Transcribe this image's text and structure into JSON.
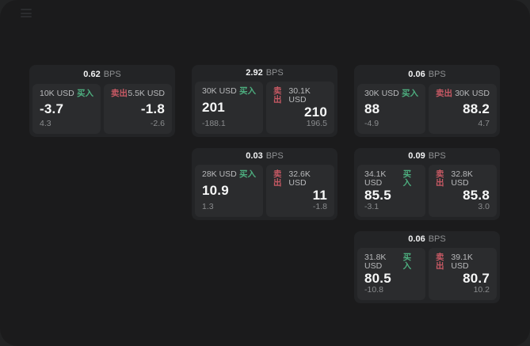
{
  "labels": {
    "bps_unit": "BPS",
    "buy": "买入",
    "sell": "卖出"
  },
  "colors": {
    "buy_green": "#4dae7f",
    "sell_red": "#c75964",
    "window_bg": "#1b1b1c",
    "card_bg": "#232426",
    "panel_bg": "#2b2c2e"
  },
  "cards": [
    {
      "bps": "0.62",
      "grid_col": 1,
      "grid_row": 1,
      "buy": {
        "amount": "10K USD",
        "value": "-3.7",
        "sub": "4.3"
      },
      "sell": {
        "amount": "5.5K USD",
        "value": "-1.8",
        "sub": "-2.6"
      }
    },
    {
      "bps": "2.92",
      "grid_col": 2,
      "grid_row": 1,
      "buy": {
        "amount": "30K USD",
        "value": "201",
        "sub": "-188.1"
      },
      "sell": {
        "amount": "30.1K USD",
        "value": "210",
        "sub": "196.5"
      }
    },
    {
      "bps": "0.06",
      "grid_col": 3,
      "grid_row": 1,
      "buy": {
        "amount": "30K USD",
        "value": "88",
        "sub": "-4.9"
      },
      "sell": {
        "amount": "30K USD",
        "value": "88.2",
        "sub": "4.7"
      }
    },
    {
      "bps": "0.03",
      "grid_col": 2,
      "grid_row": 2,
      "buy": {
        "amount": "28K USD",
        "value": "10.9",
        "sub": "1.3"
      },
      "sell": {
        "amount": "32.6K USD",
        "value": "11",
        "sub": "-1.8"
      }
    },
    {
      "bps": "0.09",
      "grid_col": 3,
      "grid_row": 2,
      "buy": {
        "amount": "34.1K USD",
        "value": "85.5",
        "sub": "-3.1"
      },
      "sell": {
        "amount": "32.8K USD",
        "value": "85.8",
        "sub": "3.0"
      }
    },
    {
      "bps": "0.06",
      "grid_col": 3,
      "grid_row": 3,
      "buy": {
        "amount": "31.8K USD",
        "value": "80.5",
        "sub": "-10.8"
      },
      "sell": {
        "amount": "39.1K USD",
        "value": "80.7",
        "sub": "10.2"
      }
    }
  ]
}
